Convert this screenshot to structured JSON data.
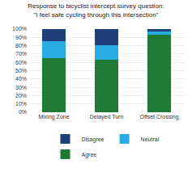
{
  "chart_data": {
    "type": "bar",
    "title": "Response to bicyclist intercept survey question:\n\"I feel safe cycling through this intersection\"",
    "categories": [
      "Mixing Zone",
      "Delayed Turn",
      "Offset Crossing"
    ],
    "series": [
      {
        "name": "Agree",
        "color": "#1e7a34",
        "values": [
          65,
          63,
          93
        ]
      },
      {
        "name": "Neutral",
        "color": "#29abe2",
        "values": [
          20,
          18,
          4
        ]
      },
      {
        "name": "Disagree",
        "color": "#1f3f7a",
        "values": [
          15,
          19,
          3
        ]
      }
    ],
    "stacked": true,
    "ylim": [
      0,
      100
    ],
    "yticks": [
      {
        "value": 0,
        "label": "0%"
      },
      {
        "value": 10,
        "label": "10%"
      },
      {
        "value": 20,
        "label": "20%"
      },
      {
        "value": 30,
        "label": "30%"
      },
      {
        "value": 40,
        "label": "40%"
      },
      {
        "value": 50,
        "label": "50%"
      },
      {
        "value": 60,
        "label": "60%"
      },
      {
        "value": 70,
        "label": "70%"
      },
      {
        "value": 80,
        "label": "80%"
      },
      {
        "value": 90,
        "label": "90%"
      },
      {
        "value": 100,
        "label": "100%"
      }
    ],
    "grid": true,
    "legend": "bottom"
  }
}
